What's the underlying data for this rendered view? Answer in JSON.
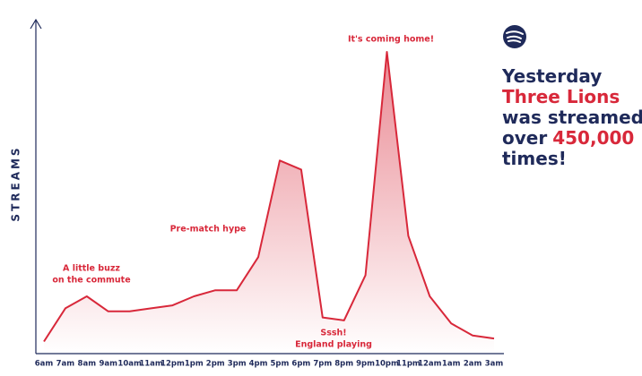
{
  "chart_data": {
    "type": "line",
    "y_label": "STREAMS",
    "categories": [
      "6am",
      "7am",
      "8am",
      "9am",
      "10am",
      "11am",
      "12pm",
      "1pm",
      "2pm",
      "3pm",
      "4pm",
      "5pm",
      "6pm",
      "7pm",
      "8pm",
      "9pm",
      "10pm",
      "11pm",
      "12am",
      "1am",
      "2am",
      "3am"
    ],
    "values": [
      4,
      15,
      19,
      14,
      14,
      15,
      16,
      19,
      21,
      21,
      32,
      64,
      61,
      12,
      11,
      26,
      100,
      39,
      19,
      10,
      6,
      5
    ],
    "color": "#d8283a",
    "ylim": [
      0,
      100
    ],
    "annotations": [
      {
        "lines": [
          "A little buzz",
          "on the commute"
        ]
      },
      {
        "lines": [
          "Pre-match hype"
        ]
      },
      {
        "lines": [
          "Sssh!",
          "England playing"
        ]
      },
      {
        "lines": [
          "It's coming home!"
        ]
      }
    ]
  },
  "headline": [
    [
      {
        "text": "Yesterday",
        "highlight": false
      }
    ],
    [
      {
        "text": "Three Lions",
        "highlight": true
      }
    ],
    [
      {
        "text": "was streamed",
        "highlight": false
      }
    ],
    [
      {
        "text": "over",
        "highlight": false
      },
      {
        "text": "450,000",
        "highlight": true
      }
    ],
    [
      {
        "text": "times!",
        "highlight": false
      }
    ]
  ]
}
